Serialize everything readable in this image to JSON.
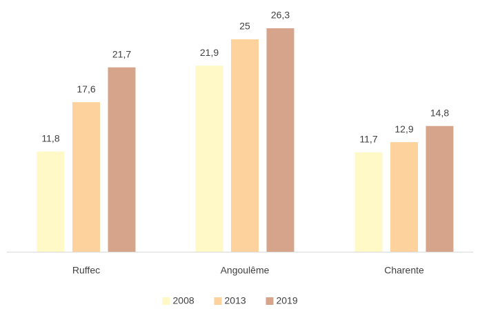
{
  "chart_data": {
    "type": "bar",
    "categories": [
      "Ruffec",
      "Angoulême",
      "Charente"
    ],
    "series": [
      {
        "name": "2008",
        "color": "#fff9c8",
        "values": [
          11.8,
          21.9,
          11.7
        ],
        "value_labels": [
          "11,8",
          "21,9",
          "11,7"
        ]
      },
      {
        "name": "2013",
        "color": "#fdd29c",
        "values": [
          17.6,
          25,
          12.9
        ],
        "value_labels": [
          "17,6",
          "25",
          "12,9"
        ]
      },
      {
        "name": "2019",
        "color": "#d5a48b",
        "values": [
          21.7,
          26.3,
          14.8
        ],
        "value_labels": [
          "21,7",
          "26,3",
          "14,8"
        ]
      }
    ]
  }
}
